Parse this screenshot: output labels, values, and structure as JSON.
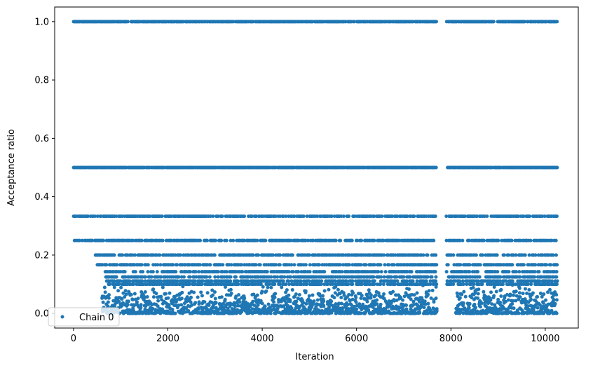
{
  "chart_data": {
    "type": "scatter",
    "xlabel": "Iteration",
    "ylabel": "Acceptance ratio",
    "xlim": [
      -400,
      10700
    ],
    "ylim": [
      -0.05,
      1.05
    ],
    "xticks": [
      0,
      2000,
      4000,
      6000,
      8000,
      10000
    ],
    "xtick_labels": [
      "0",
      "2000",
      "4000",
      "6000",
      "8000",
      "10000"
    ],
    "yticks": [
      0.0,
      0.2,
      0.4,
      0.6,
      0.8,
      1.0
    ],
    "ytick_labels": [
      "0.0",
      "0.2",
      "0.4",
      "0.6",
      "0.8",
      "1.0"
    ],
    "grid": false,
    "legend_position": "lower-left",
    "marker_color": "#1f77b4",
    "series": [
      {
        "name": "Chain 0",
        "levels": [
          1.0,
          0.5,
          0.333,
          0.25,
          0.2,
          0.1667,
          0.1429,
          0.125,
          0.1111,
          0.1
        ],
        "x_range": [
          0,
          10250
        ],
        "gaps": [
          [
            7700,
            7900
          ]
        ],
        "dense_low_region": {
          "y_range": [
            0.0,
            0.1
          ],
          "x_segments": [
            [
              600,
              2100
            ],
            [
              2100,
              4600
            ],
            [
              4500,
              7700
            ],
            [
              8100,
              10250
            ]
          ]
        }
      }
    ]
  }
}
